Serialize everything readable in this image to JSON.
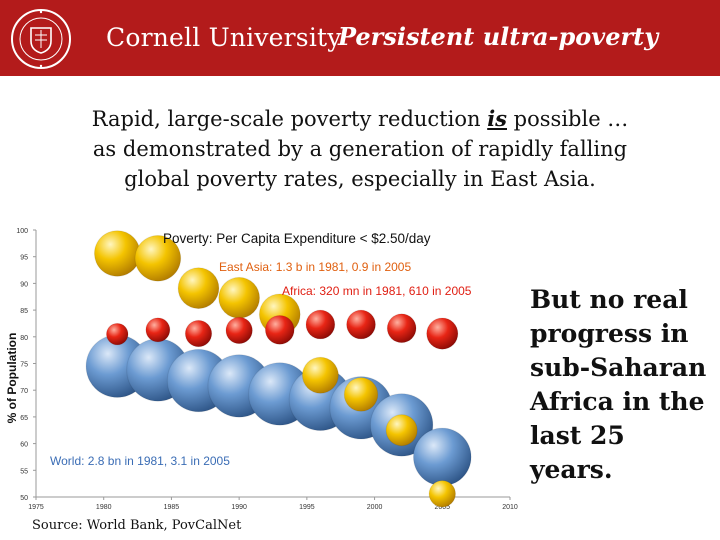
{
  "header": {
    "university": "Cornell University",
    "title": "Persistent ultra-poverty",
    "seal_icon": "cornell-seal-icon",
    "banner_color": "#b31b1b"
  },
  "headline": {
    "line1_before": "Rapid, large-scale poverty reduction ",
    "line1_emphasis": "is",
    "line1_after": " possible …",
    "line2": "as demonstrated by a generation of rapidly falling",
    "line3": "global poverty rates, especially in East Asia."
  },
  "side_note": "But no real progress in sub-Saharan Africa in the last 25 years.",
  "source": "Source: World Bank, PovCalNet",
  "chart_data": {
    "type": "scatter",
    "title": "Poverty: Per Capita Expenditure < $2.50/day",
    "ylabel": "% of Population",
    "xlabel": "",
    "xlim": [
      1975,
      2010
    ],
    "ylim": [
      50,
      100
    ],
    "x_ticks": [
      "1975",
      "1980",
      "1985",
      "1990",
      "1995",
      "2000",
      "2005",
      "2010"
    ],
    "y_ticks": [
      "50",
      "55",
      "60",
      "65",
      "70",
      "75",
      "80",
      "85",
      "90",
      "95",
      "100"
    ],
    "annotations": {
      "east_asia": "East Asia: 1.3 b in 1981, 0.9 in 2005",
      "africa": "Africa: 320 mn in 1981, 610 in 2005",
      "world": "World: 2.8 bn in 1981, 3.1 in 2005"
    },
    "series": [
      {
        "name": "World",
        "color": "#4f81bd",
        "x": [
          1981,
          1984,
          1987,
          1990,
          1993,
          1996,
          1999,
          2002,
          2005
        ],
        "y": [
          74.5,
          73.8,
          71.8,
          70.8,
          69.3,
          68.3,
          66.7,
          63.5,
          57.5
        ],
        "sizes": [
          1.3,
          1.3,
          1.3,
          1.3,
          1.3,
          1.3,
          1.3,
          1.3,
          1.2
        ]
      },
      {
        "name": "East Asia",
        "color": "#f0b400",
        "x": [
          1981,
          1984,
          1987,
          1990,
          1993,
          1996,
          1999,
          2002,
          2005
        ],
        "y": [
          95.6,
          94.7,
          89.1,
          87.3,
          84.2,
          72.8,
          69.2,
          62.5,
          50.6
        ],
        "sizes": [
          0.95,
          0.95,
          0.85,
          0.85,
          0.85,
          0.75,
          0.7,
          0.65,
          0.55
        ]
      },
      {
        "name": "Africa",
        "color": "#e01e12",
        "x": [
          1981,
          1984,
          1987,
          1990,
          1993,
          1996,
          1999,
          2002,
          2005
        ],
        "y": [
          80.5,
          81.3,
          80.6,
          81.2,
          81.3,
          82.3,
          82.3,
          81.6,
          80.6
        ],
        "sizes": [
          0.45,
          0.5,
          0.55,
          0.55,
          0.6,
          0.6,
          0.6,
          0.6,
          0.65
        ]
      }
    ]
  }
}
